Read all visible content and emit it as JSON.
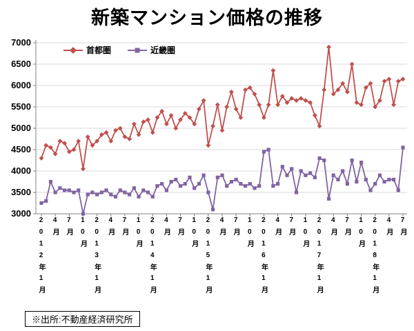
{
  "title": "新築マンション価格の推移",
  "source_note": "※出所:不動産経済研究所",
  "chart_data": {
    "type": "line",
    "title": "新築マンション価格の推移",
    "ylim": [
      3000,
      7000
    ],
    "y_ticks": [
      3000,
      3500,
      4000,
      4500,
      5000,
      5500,
      6000,
      6500,
      7000
    ],
    "grid": true,
    "legend_position": "top-left-inside",
    "x_tick_labels": [
      "2012年1月",
      "4月",
      "7月",
      "10月",
      "2013年1月",
      "4月",
      "7月",
      "10月",
      "2014年1月",
      "4月",
      "7月",
      "10月",
      "2015年1月",
      "4月",
      "7月",
      "10月",
      "2016年1月",
      "4月",
      "7月",
      "10月",
      "2017年1月",
      "4月",
      "7月",
      "10月",
      "2018年1月",
      "4月",
      "7月"
    ],
    "x_tick_indices": [
      0,
      3,
      6,
      9,
      12,
      15,
      18,
      21,
      24,
      27,
      30,
      33,
      36,
      39,
      42,
      45,
      48,
      51,
      54,
      57,
      60,
      63,
      66,
      69,
      72,
      75,
      78
    ],
    "series": [
      {
        "name": "首都圏",
        "color": "#c0504d",
        "marker": "diamond",
        "values": [
          4300,
          4600,
          4550,
          4400,
          4700,
          4650,
          4450,
          4500,
          4700,
          4050,
          4800,
          4600,
          4700,
          4850,
          4900,
          4700,
          4950,
          5000,
          4800,
          4750,
          5100,
          4850,
          5150,
          5200,
          4900,
          5250,
          5400,
          5100,
          5300,
          5000,
          5200,
          5350,
          5250,
          5100,
          5450,
          5650,
          4600,
          5050,
          5550,
          4950,
          5500,
          5850,
          5450,
          5250,
          5900,
          5950,
          5800,
          5550,
          5250,
          5550,
          6350,
          5550,
          5750,
          5600,
          5700,
          5650,
          5700,
          5650,
          5600,
          5300,
          5050,
          5900,
          6900,
          5800,
          5900,
          6050,
          5850,
          6500,
          5600,
          5550,
          5950,
          6050,
          5500,
          5650,
          6100,
          6150,
          5550,
          6100,
          6150
        ]
      },
      {
        "name": "近畿圏",
        "color": "#8064a2",
        "marker": "square",
        "values": [
          3250,
          3300,
          3750,
          3500,
          3600,
          3550,
          3550,
          3500,
          3550,
          3000,
          3450,
          3500,
          3450,
          3500,
          3550,
          3450,
          3400,
          3550,
          3500,
          3450,
          3600,
          3400,
          3550,
          3500,
          3400,
          3650,
          3700,
          3550,
          3750,
          3800,
          3650,
          3700,
          3850,
          3600,
          3700,
          3900,
          3500,
          3100,
          3850,
          3900,
          3650,
          3750,
          3800,
          3700,
          3650,
          3700,
          3600,
          3650,
          4450,
          4500,
          3650,
          3700,
          4100,
          3900,
          4050,
          3500,
          4000,
          3900,
          3950,
          3850,
          4300,
          4250,
          3350,
          3900,
          3800,
          4000,
          3700,
          4250,
          3750,
          4200,
          3800,
          3550,
          3700,
          3900,
          3750,
          3800,
          3800,
          3550,
          4550
        ]
      }
    ]
  }
}
